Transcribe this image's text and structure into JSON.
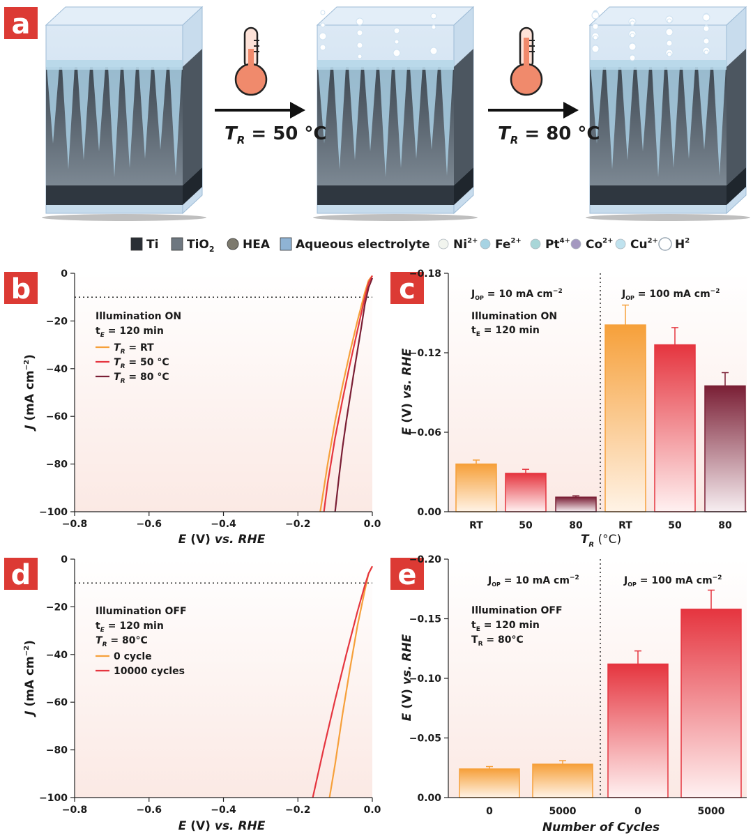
{
  "colors": {
    "accent_red": "#dc3a34",
    "rt": "#f6a03a",
    "t50": "#e5353f",
    "t80": "#7a1f35",
    "ti": "#2f3740",
    "tio2": "#5f6a74",
    "electrolyte": "#b9d6ee"
  },
  "panel_a": {
    "letter": "a",
    "arrows": [
      {
        "label_var": "T",
        "label_sub": "R",
        "label_rest": " = 50 °C"
      },
      {
        "label_var": "T",
        "label_sub": "R",
        "label_rest": " = 80 °C"
      }
    ],
    "legend": [
      {
        "label": "Ti",
        "icon": "ti-cube-icon"
      },
      {
        "label": "TiO",
        "sub": "2",
        "icon": "tio2-cube-icon"
      },
      {
        "label": "HEA",
        "icon": "hea-sphere-icon"
      },
      {
        "label": "Aqueous electrolyte",
        "icon": "electrolyte-cube-icon"
      },
      {
        "label": "Ni",
        "sup": "2+",
        "icon": "ni-ion-icon"
      },
      {
        "label": "Fe",
        "sup": "2+",
        "icon": "fe-ion-icon"
      },
      {
        "label": "Pt",
        "sup": "4+",
        "icon": "pt-ion-icon"
      },
      {
        "label": "Co",
        "sup": "2+",
        "icon": "co-ion-icon"
      },
      {
        "label": "Cu",
        "sup": "2+",
        "icon": "cu-ion-icon"
      },
      {
        "label": "H",
        "sup": "2",
        "icon": "h2-bubble-icon"
      }
    ]
  },
  "panel_b": {
    "letter": "b",
    "annotation": [
      "Illumination ON",
      "t_E = 120 min"
    ],
    "xlabel": "E (V) vs. RHE",
    "ylabel": "J (mA cm⁻²)"
  },
  "panel_c": {
    "letter": "c",
    "annotation": [
      "Illumination ON",
      "t_E = 120 min"
    ],
    "group_labels": [
      "J_OP = 10 mA cm⁻²",
      "J_OP = 100 mA cm⁻²"
    ],
    "xlabel": "T_R (°C)",
    "ylabel": "E (V) vs. RHE"
  },
  "panel_d": {
    "letter": "d",
    "annotation": [
      "Illumination OFF",
      "t_E = 120 min",
      "T_R = 80°C"
    ],
    "xlabel": "E (V) vs. RHE",
    "ylabel": "J (mA cm⁻²)"
  },
  "panel_e": {
    "letter": "e",
    "annotation": [
      "Illumination OFF",
      "t_E = 120 min",
      "T_R = 80°C"
    ],
    "group_labels": [
      "J_OP = 10 mA cm⁻²",
      "J_OP = 100 mA cm⁻²"
    ],
    "xlabel": "Number of Cycles",
    "ylabel": "E (V) vs. RHE"
  },
  "chart_data": [
    {
      "panel": "b",
      "type": "line",
      "xlim": [
        -0.8,
        0.0
      ],
      "ylim": [
        -100,
        0
      ],
      "xticks": [
        "-0.8",
        "-0.6",
        "-0.4",
        "-0.2",
        "0.0"
      ],
      "yticks": [
        "0",
        "-20",
        "-40",
        "-60",
        "-80",
        "-100"
      ],
      "reference_line_y": -10,
      "series": [
        {
          "name": "T_R = RT",
          "color": "#f6a03a",
          "x": [
            0.0,
            -0.01,
            -0.02,
            -0.04,
            -0.06,
            -0.08,
            -0.1,
            -0.12,
            -0.14
          ],
          "y": [
            -1,
            -3,
            -8,
            -20,
            -33,
            -47,
            -62,
            -80,
            -100
          ]
        },
        {
          "name": "T_R = 50 °C",
          "color": "#e5353f",
          "x": [
            0.0,
            -0.01,
            -0.02,
            -0.04,
            -0.06,
            -0.08,
            -0.1,
            -0.12,
            -0.13
          ],
          "y": [
            -1,
            -4,
            -10,
            -24,
            -38,
            -53,
            -69,
            -88,
            -100
          ]
        },
        {
          "name": "T_R = 80 °C",
          "color": "#7a1f35",
          "x": [
            0.0,
            -0.01,
            -0.02,
            -0.03,
            -0.05,
            -0.07,
            -0.08,
            -0.09,
            -0.1
          ],
          "y": [
            -2,
            -6,
            -13,
            -23,
            -42,
            -62,
            -73,
            -86,
            -100
          ]
        }
      ]
    },
    {
      "panel": "c",
      "type": "bar",
      "ylim": [
        0.0,
        -0.18
      ],
      "yticks": [
        "0.00",
        "-0.06",
        "-0.12",
        "-0.18"
      ],
      "categories": [
        "RT",
        "50",
        "80",
        "RT",
        "50",
        "80"
      ],
      "values": [
        -0.036,
        -0.029,
        -0.011,
        -0.141,
        -0.126,
        -0.095
      ],
      "errors": [
        0.003,
        0.003,
        0.001,
        0.015,
        0.013,
        0.01
      ],
      "bar_colors": [
        "#f6a03a",
        "#e5353f",
        "#7a1f35",
        "#f6a03a",
        "#e5353f",
        "#7a1f35"
      ]
    },
    {
      "panel": "d",
      "type": "line",
      "xlim": [
        -0.8,
        0.0
      ],
      "ylim": [
        -100,
        0
      ],
      "xticks": [
        "-0.8",
        "-0.6",
        "-0.4",
        "-0.2",
        "0.0"
      ],
      "yticks": [
        "0",
        "-20",
        "-40",
        "-60",
        "-80",
        "-100"
      ],
      "reference_line_y": -10,
      "series": [
        {
          "name": "0 cycle",
          "color": "#f6a03a",
          "x": [
            0.0,
            -0.01,
            -0.02,
            -0.04,
            -0.06,
            -0.08,
            -0.1,
            -0.115
          ],
          "y": [
            -3,
            -6,
            -13,
            -28,
            -46,
            -65,
            -86,
            -100
          ]
        },
        {
          "name": "10000 cycles",
          "color": "#e5353f",
          "x": [
            0.0,
            -0.01,
            -0.02,
            -0.04,
            -0.07,
            -0.1,
            -0.13,
            -0.16
          ],
          "y": [
            -3,
            -6,
            -11,
            -22,
            -40,
            -59,
            -79,
            -100
          ]
        }
      ]
    },
    {
      "panel": "e",
      "type": "bar",
      "ylim": [
        0.0,
        -0.2
      ],
      "yticks": [
        "0.00",
        "-0.05",
        "-0.10",
        "-0.15",
        "-0.20"
      ],
      "categories": [
        "0",
        "5000",
        "0",
        "5000"
      ],
      "values": [
        -0.024,
        -0.028,
        -0.112,
        -0.158
      ],
      "errors": [
        0.002,
        0.003,
        0.011,
        0.016
      ],
      "bar_colors": [
        "#f6a03a",
        "#f6a03a",
        "#e5353f",
        "#e5353f"
      ]
    }
  ]
}
